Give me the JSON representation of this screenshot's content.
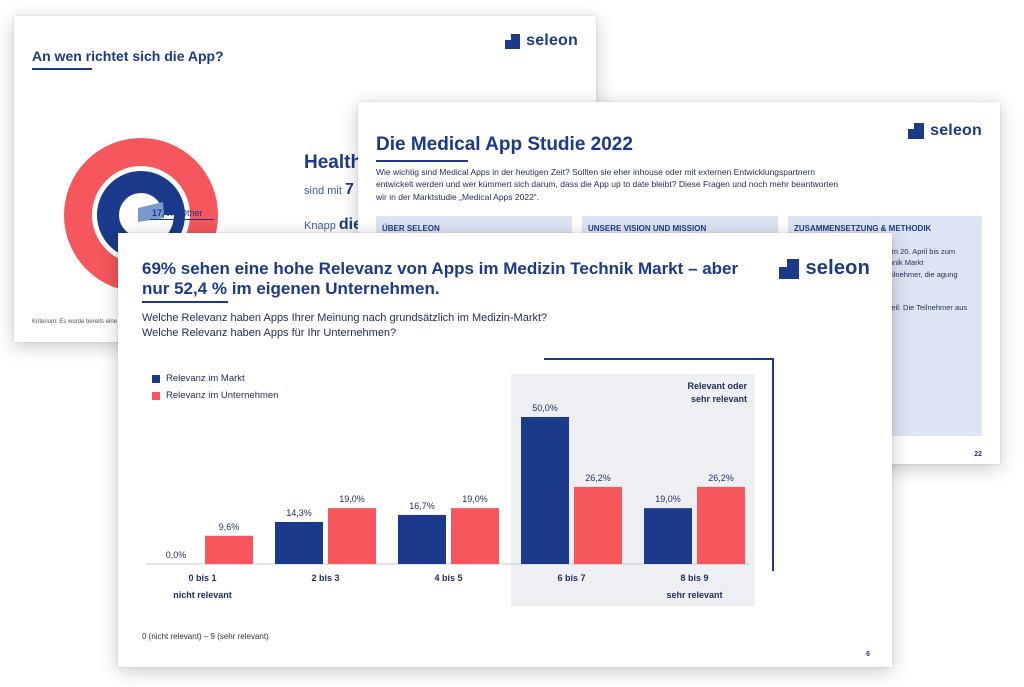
{
  "brand": {
    "name": "seleon",
    "navy": "#1b3a8c",
    "coral": "#f6575c",
    "light_blue": "#7b9acb",
    "panel_grey": "#eeeff2"
  },
  "back_slide": {
    "title": "An wen richtet sich die App?",
    "headline": "Health",
    "line1_prefix": "sind mit",
    "line1_value": "7",
    "line2_prefix": "Knapp",
    "line2_value": "die",
    "donut_label_value": "17,4%",
    "donut_label_text": "Other",
    "footnote": "Kriterium: Es wurde bereits eine"
  },
  "mid_slide": {
    "title": "Die Medical App Studie 2022",
    "intro": "Wie wichtig sind Medical Apps in der heutigen Zeit? Sollten sie eher inhouse oder mit externen Entwicklungspartnern entwickelt werden und wer kümmert sich darum, dass die App up to date bleibt? Diese Fragen und noch mehr beantworten wir in der Marktstudie „Medical Apps 2022“.",
    "columns": [
      {
        "heading": "ÜBER SELEON",
        "text": ""
      },
      {
        "heading": "UNSERE VISION UND MISSION",
        "text": ""
      },
      {
        "heading": "ZUSAMMENSETZUNG & METHODIK",
        "text": "lgte über eine Online- m 20. April bis zum usgewählte Unter- echnik Markt Studienteilnahme n Teilnehmer, die agung aufmerksam\n\nternehmen aus der e teil. Die Teilnehmer aus ehmen, Konzernen\n\nt die seleon GmbH."
      }
    ],
    "page_number": "22"
  },
  "front_slide": {
    "title": "69% sehen eine hohe Relevanz von Apps im Medizin Technik Markt – aber nur 52,4 % im eigenen Unternehmen.",
    "question1": "Welche Relevanz haben Apps Ihrer Meinung nach grundsätzlich im Medizin-Markt?",
    "question2": "Welche Relevanz haben Apps für Ihr Unternehmen?",
    "footnote": "0 (nicht relevant) – 9 (sehr relevant)",
    "page_number": "6"
  },
  "chart_data": {
    "type": "bar",
    "categories": [
      "0 bis 1",
      "2 bis 3",
      "4 bis 5",
      "6 bis 7",
      "8 bis 9"
    ],
    "category_sublabels": [
      "nicht relevant",
      "",
      "",
      "",
      "sehr relevant"
    ],
    "series": [
      {
        "name": "Relevanz im Markt",
        "values": [
          0.0,
          14.3,
          16.7,
          50.0,
          19.0
        ],
        "labels": [
          "0,0%",
          "14,3%",
          "16,7%",
          "50,0%",
          "19,0%"
        ],
        "color": "#1b3a8c"
      },
      {
        "name": "Relevanz im Unternehmen",
        "values": [
          9.6,
          19.0,
          19.0,
          26.2,
          26.2
        ],
        "labels": [
          "9,6%",
          "19,0%",
          "19,0%",
          "26,2%",
          "26,2%"
        ],
        "color": "#f6575c"
      }
    ],
    "ylim": [
      0,
      50
    ],
    "highlight": {
      "categories": [
        "6 bis 7",
        "8 bis 9"
      ],
      "label_line1": "Relevant oder",
      "label_line2": "sehr relevant"
    },
    "legend_position": "top-left",
    "grid": false
  }
}
